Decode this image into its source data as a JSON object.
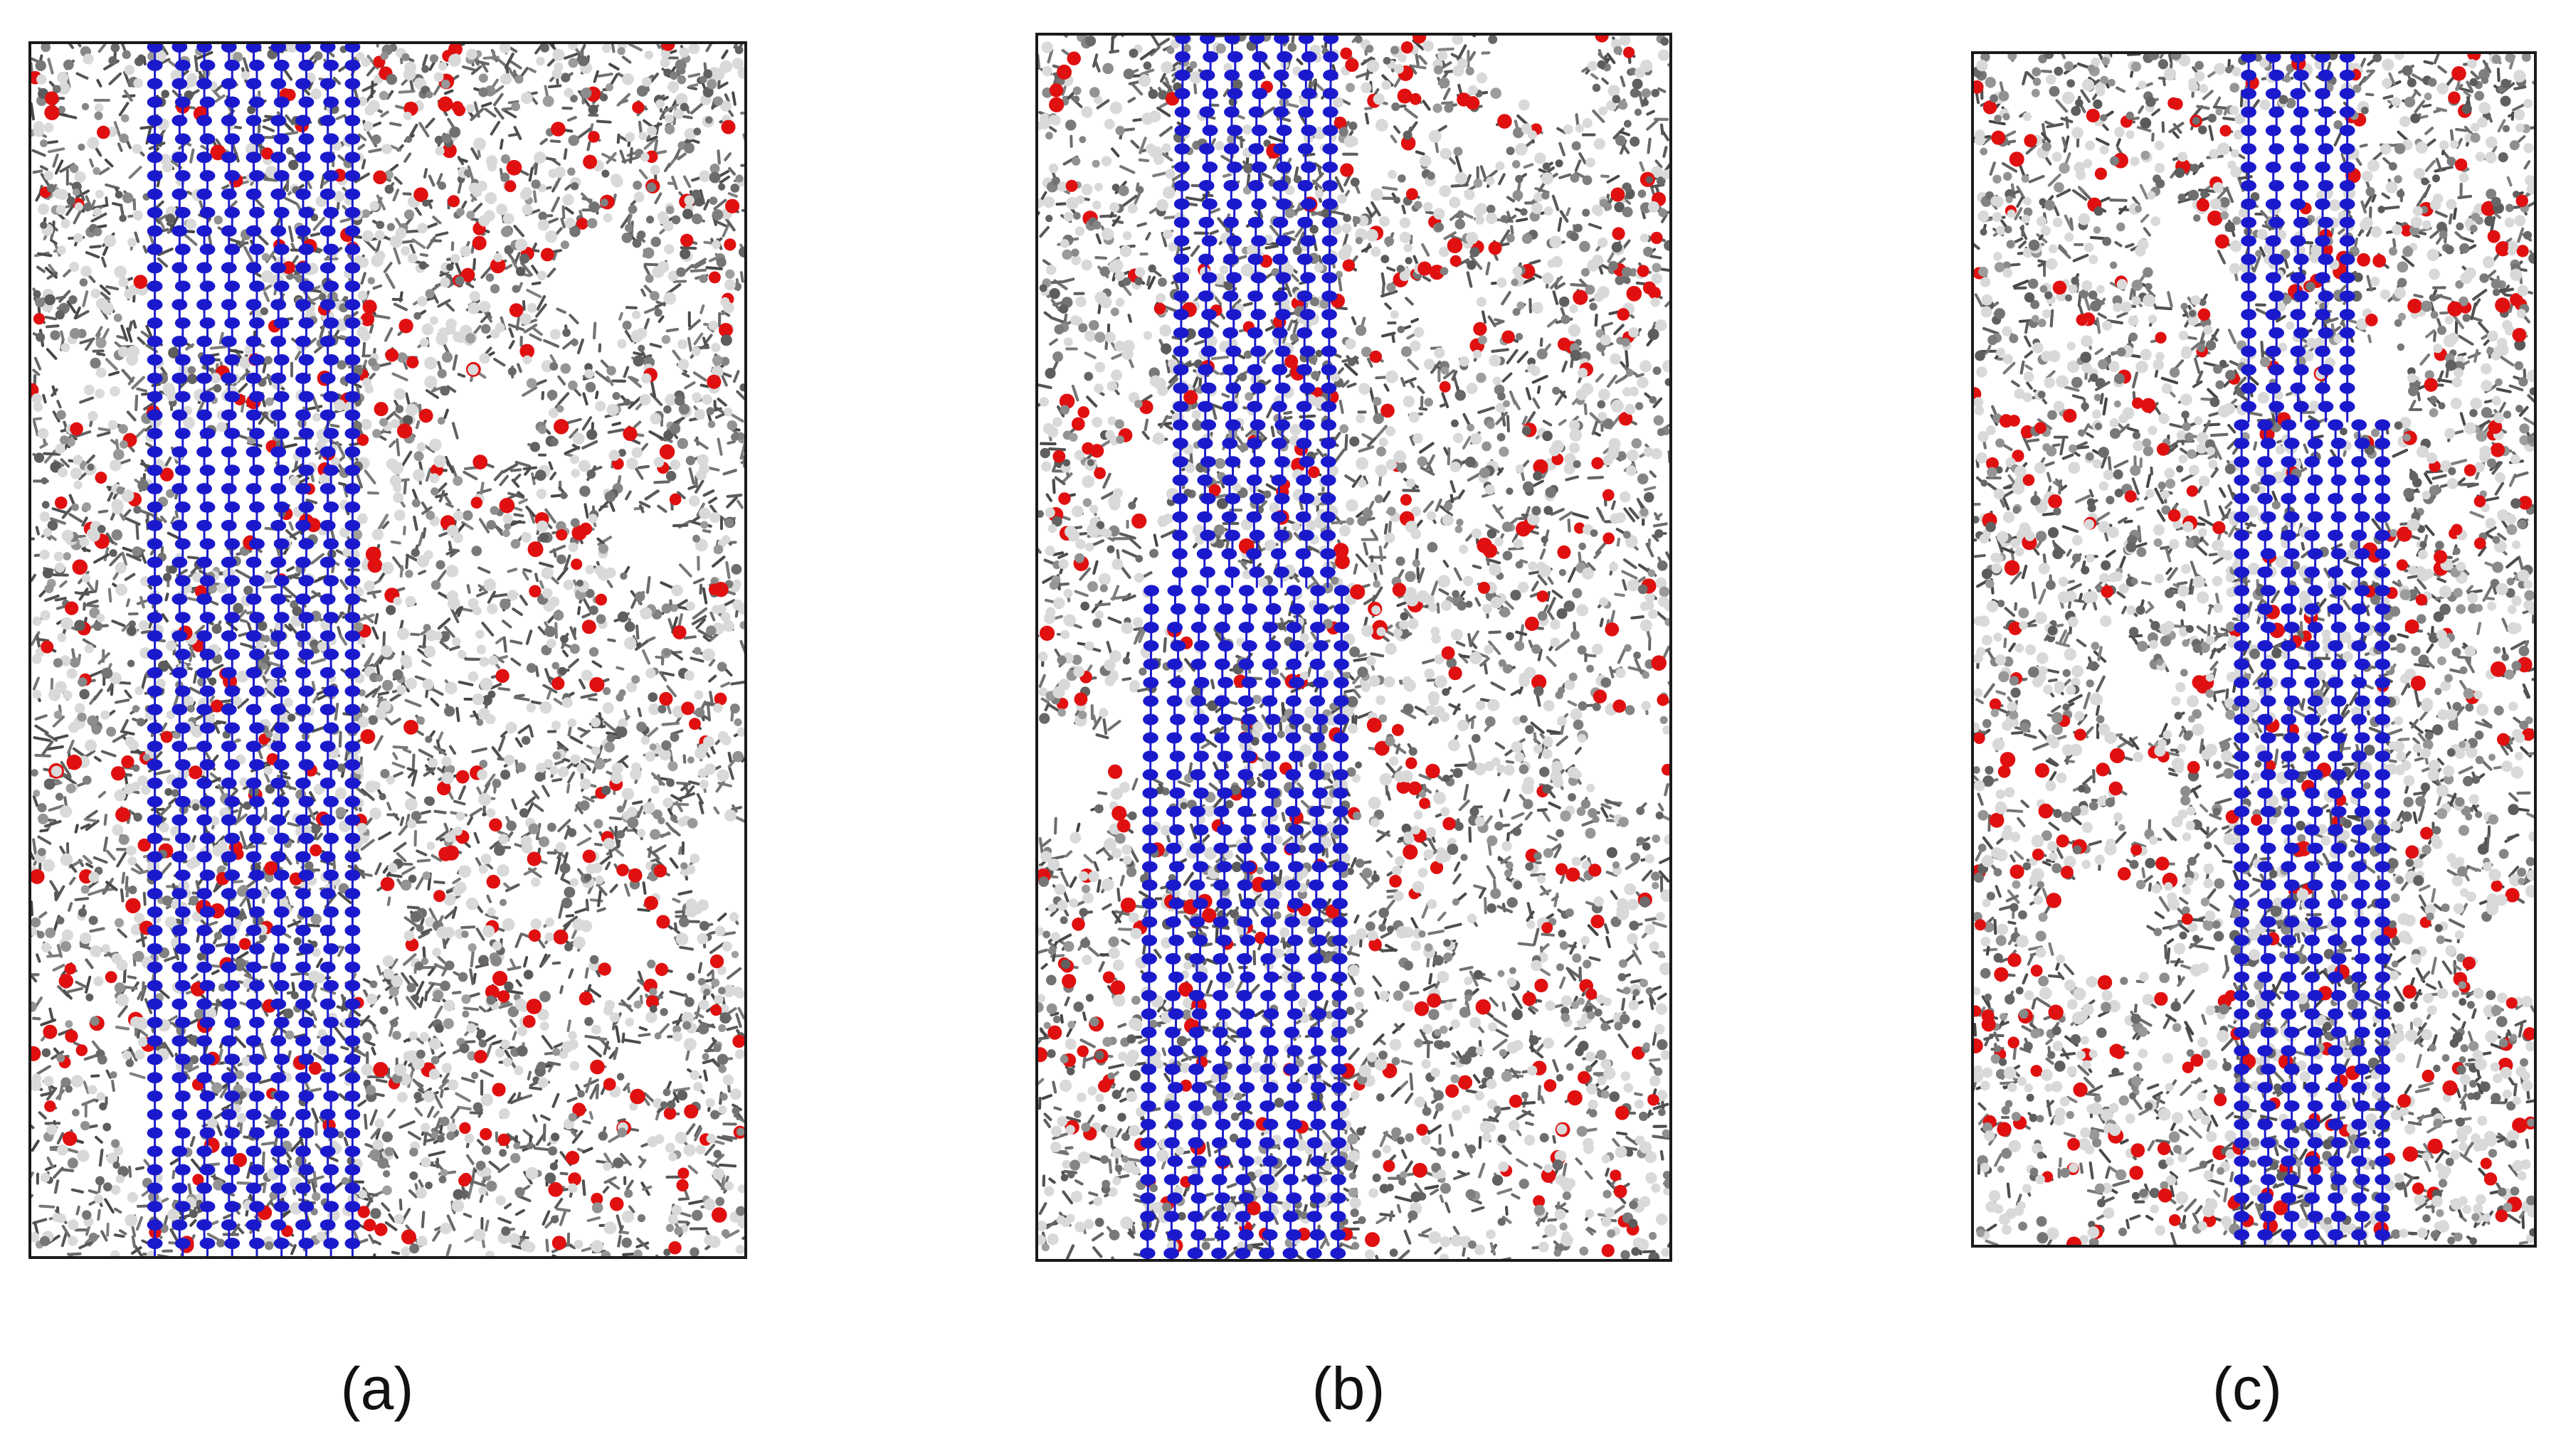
{
  "figure": {
    "panels": [
      {
        "id": "a",
        "label": "(a)",
        "nanotube": "straight"
      },
      {
        "id": "b",
        "label": "(b)",
        "nanotube": "tilted"
      },
      {
        "id": "c",
        "label": "(c)",
        "nanotube": "tilted-narrow-top"
      }
    ],
    "colors": {
      "nanotube": "#1a1acc",
      "oxygen": "#e01010",
      "carbon": "#6e6e6e",
      "hydrogen": "#d9d9d9",
      "frame": "#1a1a1a"
    }
  }
}
